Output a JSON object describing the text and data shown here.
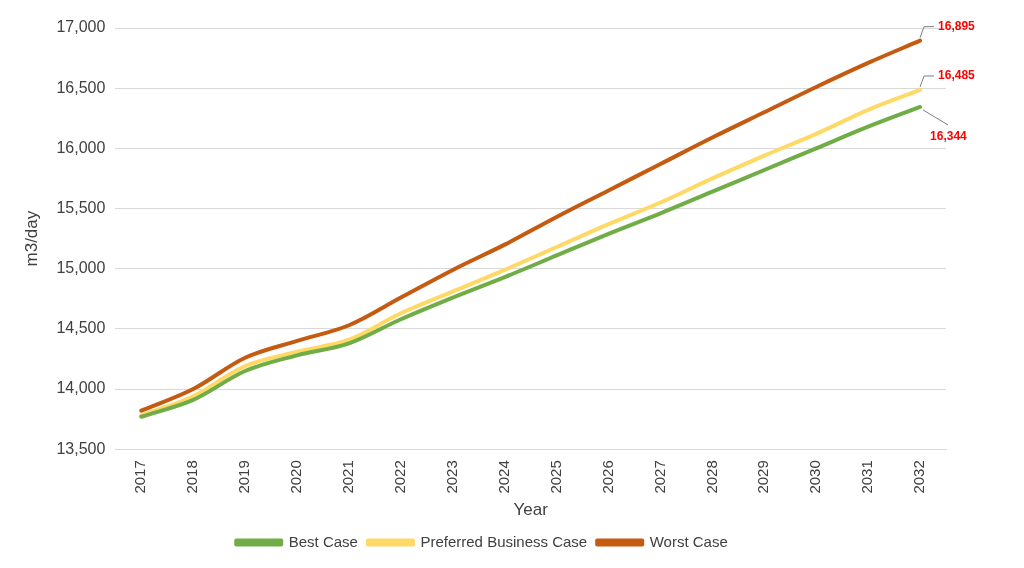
{
  "chart_data": {
    "type": "line",
    "xlabel": "Year",
    "ylabel": "m3/day",
    "categories": [
      "2017",
      "2018",
      "2019",
      "2020",
      "2021",
      "2022",
      "2023",
      "2024",
      "2025",
      "2026",
      "2027",
      "2028",
      "2029",
      "2030",
      "2031",
      "2032"
    ],
    "series": [
      {
        "name": "Best Case",
        "color": "#70ad47",
        "values": [
          13770,
          13910,
          14150,
          14280,
          14380,
          14580,
          14760,
          14930,
          15110,
          15290,
          15460,
          15640,
          15820,
          16000,
          16180,
          16344
        ],
        "value_labels": [
          null,
          null,
          null,
          null,
          null,
          null,
          null,
          null,
          null,
          null,
          null,
          null,
          null,
          null,
          null,
          "16,344"
        ]
      },
      {
        "name": "Preferred Business Case",
        "color": "#ffd966",
        "values": [
          13780,
          13940,
          14190,
          14310,
          14410,
          14630,
          14810,
          14990,
          15180,
          15370,
          15550,
          15750,
          15940,
          16120,
          16320,
          16485
        ],
        "value_labels": [
          null,
          null,
          null,
          null,
          null,
          null,
          null,
          null,
          null,
          null,
          null,
          null,
          null,
          null,
          null,
          "16,485"
        ]
      },
      {
        "name": "Worst Case",
        "color": "#c55a11",
        "values": [
          13820,
          14000,
          14260,
          14400,
          14530,
          14760,
          14990,
          15200,
          15430,
          15650,
          15870,
          16090,
          16300,
          16510,
          16710,
          16895
        ],
        "value_labels": [
          null,
          null,
          null,
          null,
          null,
          null,
          null,
          null,
          null,
          null,
          null,
          null,
          null,
          null,
          null,
          "16,895"
        ]
      }
    ],
    "ylim": [
      13500,
      17000
    ],
    "yticks": [
      {
        "value": 13500,
        "label": "13,500"
      },
      {
        "value": 14000,
        "label": "14,000"
      },
      {
        "value": 14500,
        "label": "14,500"
      },
      {
        "value": 15000,
        "label": "15,000"
      },
      {
        "value": 15500,
        "label": "15,500"
      },
      {
        "value": 16000,
        "label": "16,000"
      },
      {
        "value": 16500,
        "label": "16,500"
      },
      {
        "value": 17000,
        "label": "17,000"
      }
    ],
    "grid": "y",
    "legend": "bottom",
    "marker": "none",
    "line_style": "solid"
  }
}
